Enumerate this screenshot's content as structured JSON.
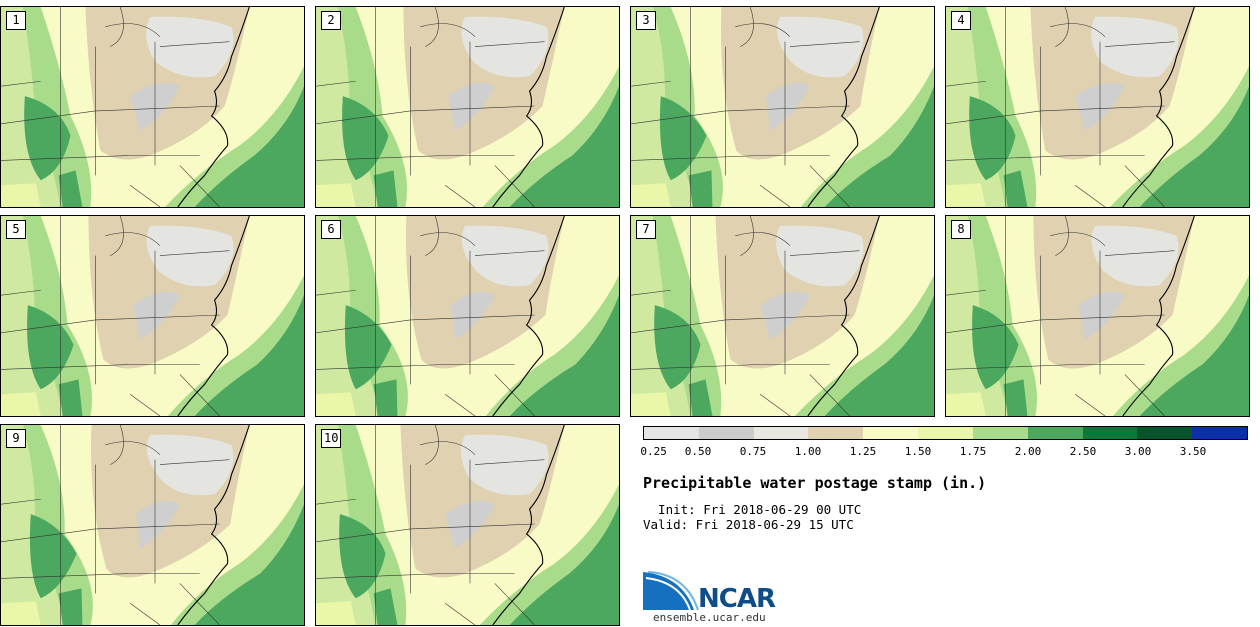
{
  "stamps": [
    {
      "label": "1"
    },
    {
      "label": "2"
    },
    {
      "label": "3"
    },
    {
      "label": "4"
    },
    {
      "label": "5"
    },
    {
      "label": "6"
    },
    {
      "label": "7"
    },
    {
      "label": "8"
    },
    {
      "label": "9"
    },
    {
      "label": "10"
    }
  ],
  "colorbar": {
    "colors": [
      "#e4e4e4",
      "#cccccc",
      "#e8e8e0",
      "#e0d2b0",
      "#f9fbc6",
      "#eaf7a8",
      "#a8dc8a",
      "#4ca85e",
      "#0a7a3a",
      "#06542c",
      "#0b2fa8"
    ],
    "ticks": [
      "0.25",
      "0.50",
      "0.75",
      "1.00",
      "1.25",
      "1.50",
      "1.75",
      "2.00",
      "2.50",
      "3.00",
      "3.50"
    ]
  },
  "title": "Precipitable water postage stamp (in.)",
  "init": "  Init: Fri 2018-06-29 00 UTC",
  "valid": "Valid: Fri 2018-06-29 15 UTC",
  "logo": {
    "text": "NCAR",
    "site": "ensemble.ucar.edu"
  }
}
